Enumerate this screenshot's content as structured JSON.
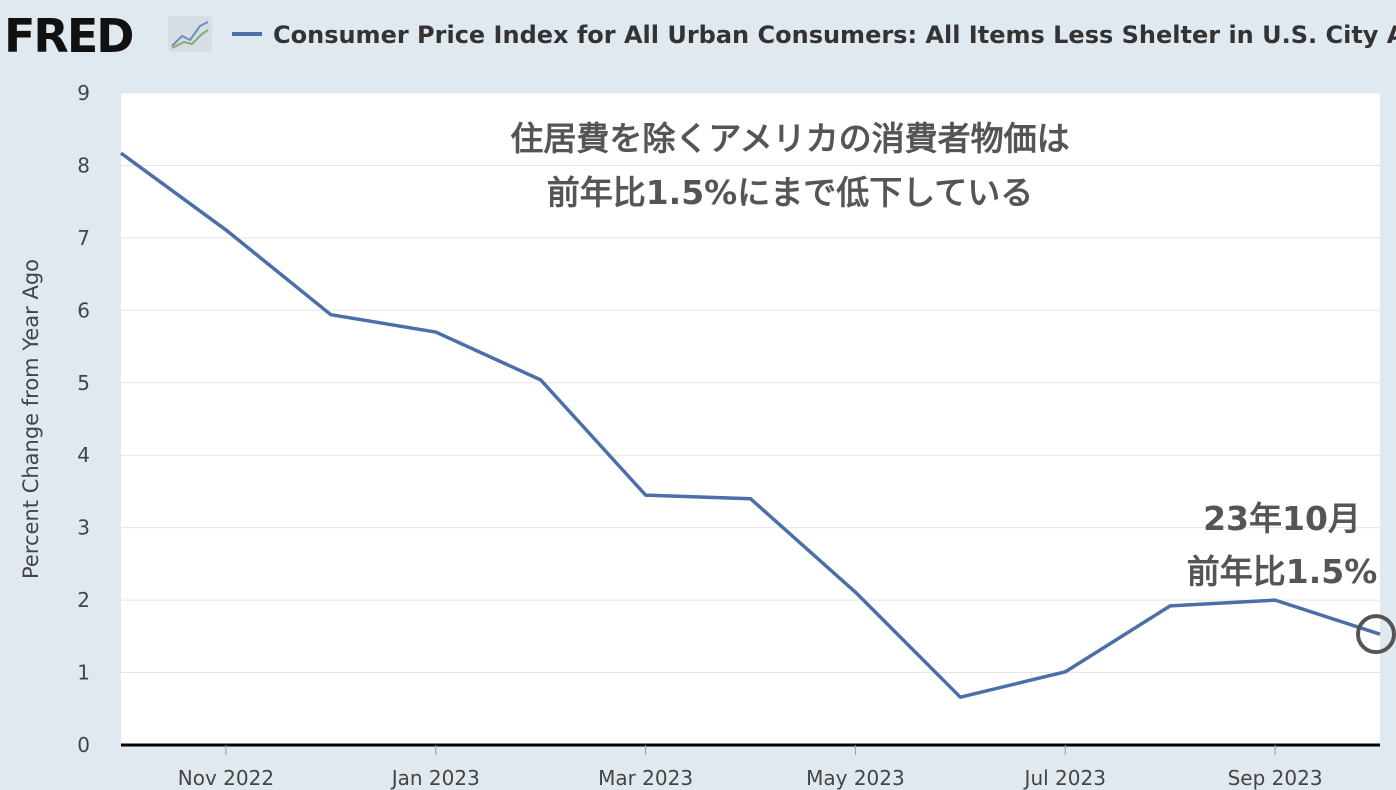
{
  "logo": "FRED",
  "chart_data": {
    "type": "line",
    "title": "Consumer Price Index for All Urban Consumers: All Items Less Shelter in U.S. City Average",
    "y_label": "Percent Change from Year Ago",
    "annotations": [
      "住居費を除くアメリカの消費者物価は",
      "前年比1.5%にまで低下している",
      "23年10月",
      "前年比1.5%"
    ],
    "categories": [
      null,
      "Nov 2022",
      null,
      "Jan 2023",
      null,
      "Mar 2023",
      null,
      "May 2023",
      null,
      "Jul 2023",
      null,
      "Sep 2023",
      null
    ],
    "series": [
      {
        "name": "Consumer Price Index for All Urban Consumers: All Items Less Shelter in U.S. City Average",
        "color": "#4b6fa8",
        "values": [
          8.17,
          7.11,
          5.94,
          5.7,
          5.04,
          3.45,
          3.4,
          2.11,
          0.66,
          1.01,
          1.92,
          2.0,
          1.53
        ]
      }
    ],
    "ylim": [
      0,
      9
    ],
    "yticks": [
      0,
      1,
      2,
      3,
      4,
      5,
      6,
      7,
      8,
      9
    ],
    "grid": true
  }
}
